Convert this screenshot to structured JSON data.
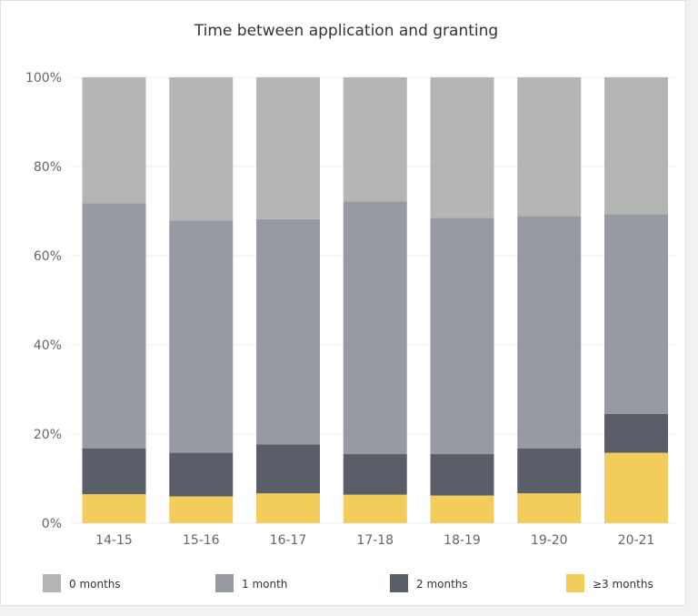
{
  "chart_data": {
    "type": "bar",
    "stacked": true,
    "title": "Time between application and granting",
    "xlabel": "",
    "ylabel": "",
    "ylim": [
      0,
      100
    ],
    "y_ticks": [
      "0%",
      "20%",
      "40%",
      "60%",
      "80%",
      "100%"
    ],
    "grid": true,
    "legend_position": "bottom",
    "categories": [
      "14-15",
      "15-16",
      "16-17",
      "17-18",
      "18-19",
      "19-20",
      "20-21"
    ],
    "series": [
      {
        "name": "≥3 months",
        "color": "#f2cd5c",
        "values": [
          6.5,
          6.0,
          6.7,
          6.4,
          6.2,
          6.7,
          15.8
        ]
      },
      {
        "name": "2 months",
        "color": "#595e68",
        "values": [
          10.3,
          9.8,
          11.0,
          9.1,
          9.3,
          10.1,
          8.7
        ]
      },
      {
        "name": "1 month",
        "color": "#979aa1",
        "values": [
          55.0,
          52.1,
          50.5,
          56.7,
          53.0,
          52.1,
          44.8
        ]
      },
      {
        "name": "0 months",
        "color": "#b3b6b5",
        "values": [
          28.2,
          32.1,
          31.8,
          27.8,
          31.5,
          31.1,
          30.7
        ]
      }
    ],
    "legend_order": [
      "0 months",
      "1 month",
      "2 months",
      "≥3 months"
    ]
  }
}
